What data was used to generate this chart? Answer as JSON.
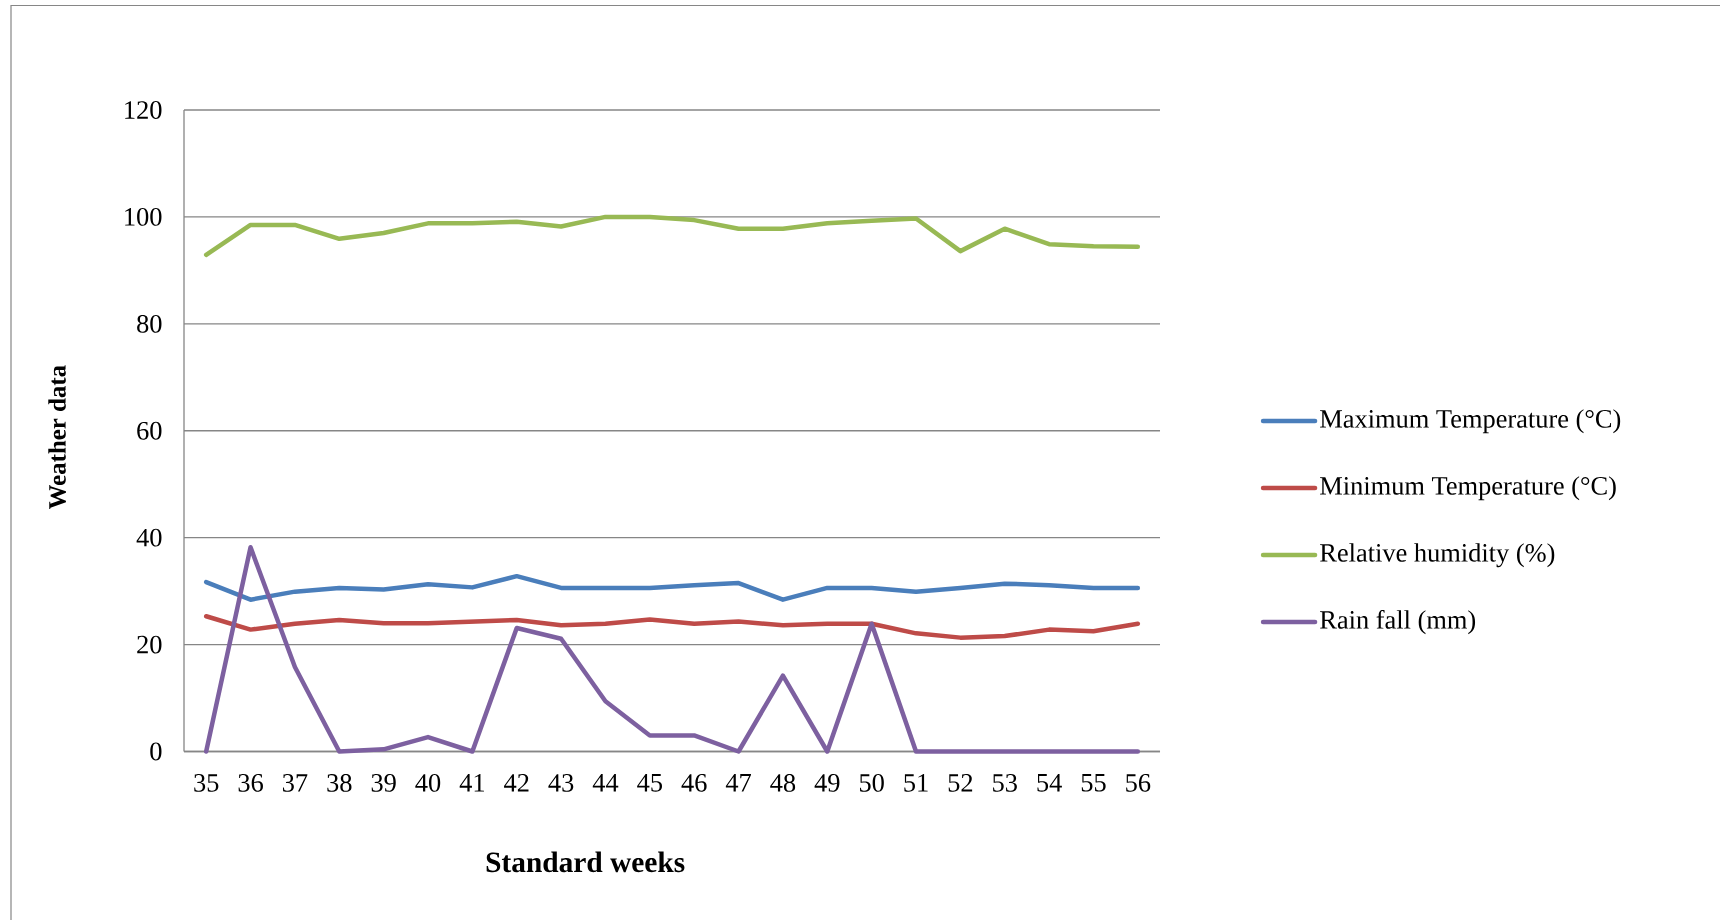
{
  "chart_data": {
    "type": "line",
    "xlabel": "Standard weeks",
    "ylabel": "Weather data",
    "categories": [
      "35",
      "36",
      "37",
      "38",
      "39",
      "40",
      "41",
      "42",
      "43",
      "44",
      "45",
      "46",
      "47",
      "48",
      "49",
      "50",
      "51",
      "52",
      "53",
      "54",
      "55",
      "56"
    ],
    "series": [
      {
        "name": "Maximum Temperature (°C)",
        "color": "#4a7ebb",
        "values": [
          31.7,
          28.4,
          29.9,
          30.6,
          30.3,
          31.3,
          30.7,
          32.8,
          30.6,
          30.6,
          30.6,
          31.1,
          31.5,
          28.4,
          30.6,
          30.6,
          29.9,
          30.6,
          31.4,
          31.1,
          30.6,
          30.6
        ]
      },
      {
        "name": "Minimum Temperature (°C)",
        "color": "#be4b48",
        "values": [
          25.3,
          22.8,
          23.9,
          24.6,
          24.0,
          24.0,
          24.3,
          24.6,
          23.6,
          23.9,
          24.7,
          23.9,
          24.3,
          23.6,
          23.9,
          23.9,
          22.1,
          21.3,
          21.6,
          22.8,
          22.5,
          23.9
        ]
      },
      {
        "name": "Relative humidity (%)",
        "color": "#98b954",
        "values": [
          92.9,
          98.5,
          98.5,
          95.9,
          97.0,
          98.8,
          98.8,
          99.1,
          98.2,
          100,
          100,
          99.4,
          97.8,
          97.8,
          98.8,
          99.3,
          99.7,
          93.6,
          97.8,
          94.9,
          94.5,
          94.4
        ]
      },
      {
        "name": "Rain fall (mm)",
        "color": "#7d60a0",
        "values": [
          0,
          38.2,
          15.8,
          0,
          0.4,
          2.7,
          0,
          23.1,
          21.1,
          9.4,
          3.0,
          3.0,
          0,
          14.2,
          0,
          23.9,
          0,
          0,
          0,
          0,
          0,
          0
        ]
      }
    ],
    "ylim": [
      0,
      120
    ],
    "yticks": [
      0,
      20,
      40,
      60,
      80,
      100,
      120
    ],
    "grid": "y",
    "legend": "right",
    "line_style": "solid"
  }
}
